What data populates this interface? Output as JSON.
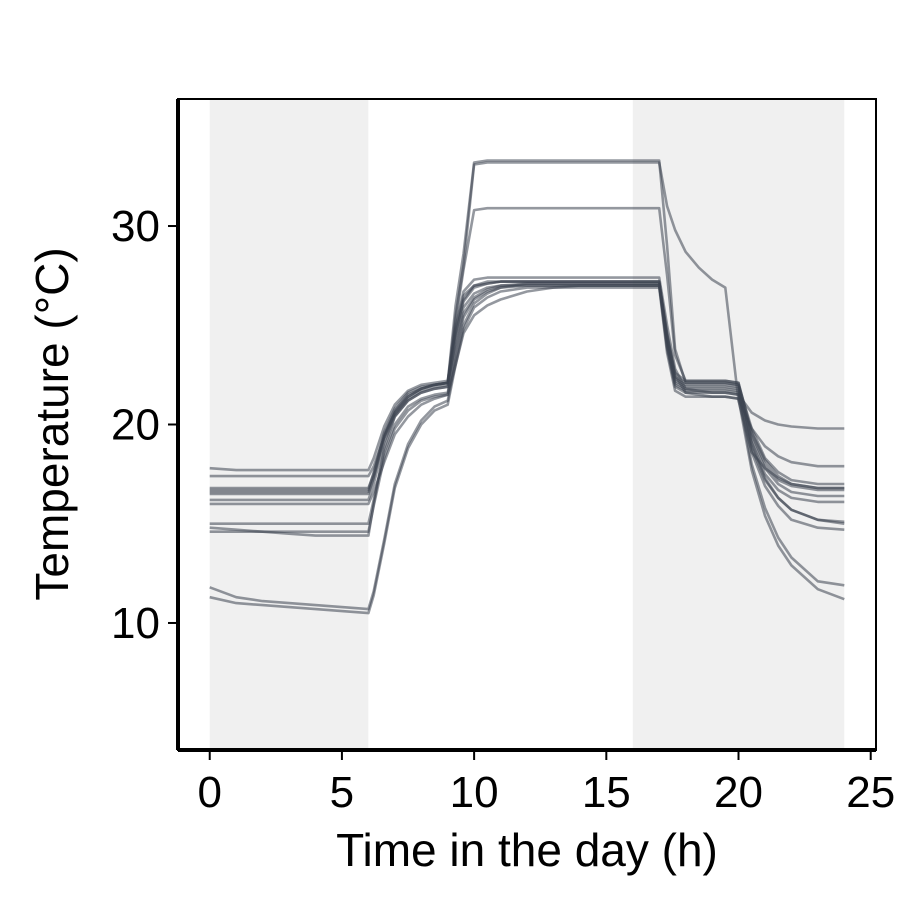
{
  "chart_data": {
    "type": "line",
    "xlabel": "Time in the day (h)",
    "ylabel": "Temperature (°C)",
    "xlim": [
      -1.2,
      25.2
    ],
    "ylim": [
      3.6,
      36.4
    ],
    "x_ticks": [
      0,
      5,
      10,
      15,
      20,
      25
    ],
    "x_tick_labels": [
      "0",
      "5",
      "10",
      "15",
      "20",
      "25"
    ],
    "y_ticks": [
      10,
      20,
      30
    ],
    "y_tick_labels": [
      "10",
      "20",
      "30"
    ],
    "shaded_periods": [
      [
        0,
        6
      ],
      [
        16,
        24
      ]
    ],
    "line_color": "#3c4350",
    "shade_color": "#f0f0f0",
    "grid": false,
    "legend": "none",
    "series_x": [
      0,
      1,
      2,
      3,
      4,
      5,
      6,
      6.2,
      6.6,
      7,
      7.5,
      8,
      8.5,
      9,
      9.3,
      9.6,
      10,
      10.5,
      11,
      12,
      13,
      14,
      15,
      16,
      16.5,
      17,
      17.3,
      17.6,
      18,
      18.5,
      19,
      19.5,
      20,
      20.5,
      21,
      21.5,
      22,
      23,
      24
    ],
    "series": [
      {
        "values": [
          16.7,
          16.7,
          16.7,
          16.7,
          16.7,
          16.7,
          16.7,
          17.6,
          19.6,
          20.8,
          21.6,
          21.9,
          22.0,
          22.1,
          26.0,
          28.6,
          33.2,
          33.3,
          33.3,
          33.3,
          33.3,
          33.3,
          33.3,
          33.3,
          33.3,
          33.3,
          29.0,
          23.8,
          22.1,
          22.1,
          22.1,
          22.1,
          22.0,
          19.8,
          18.3,
          17.6,
          17.2,
          17.0,
          17.0
        ]
      },
      {
        "values": [
          16.6,
          16.6,
          16.6,
          16.6,
          16.6,
          16.6,
          16.6,
          17.4,
          19.4,
          20.6,
          21.4,
          21.8,
          22.0,
          22.1,
          25.5,
          28.0,
          33.1,
          33.2,
          33.2,
          33.2,
          33.2,
          33.2,
          33.2,
          33.2,
          33.2,
          33.2,
          31.0,
          29.8,
          28.7,
          27.9,
          27.3,
          26.9,
          21.2,
          18.6,
          17.8,
          17.3,
          17.0,
          16.8,
          16.8
        ]
      },
      {
        "values": [
          16.5,
          16.5,
          16.5,
          16.5,
          16.5,
          16.5,
          16.5,
          17.3,
          19.3,
          20.5,
          21.3,
          21.7,
          21.9,
          22.0,
          25.2,
          27.8,
          30.8,
          30.9,
          30.9,
          30.9,
          30.9,
          30.9,
          30.9,
          30.9,
          30.9,
          30.9,
          27.5,
          23.5,
          22.2,
          22.2,
          22.2,
          22.2,
          22.1,
          19.5,
          18.0,
          17.2,
          16.9,
          16.7,
          16.7
        ]
      },
      {
        "values": [
          16.8,
          16.8,
          16.8,
          16.8,
          16.8,
          16.8,
          16.8,
          17.5,
          19.5,
          20.7,
          21.5,
          21.8,
          22.0,
          22.1,
          24.8,
          26.5,
          27.0,
          27.1,
          27.2,
          27.2,
          27.2,
          27.2,
          27.2,
          27.2,
          27.2,
          27.2,
          24.5,
          22.6,
          22.2,
          22.2,
          22.2,
          22.2,
          22.1,
          19.6,
          18.2,
          17.4,
          17.0,
          16.8,
          16.8
        ]
      },
      {
        "values": [
          17.8,
          17.7,
          17.7,
          17.7,
          17.7,
          17.7,
          17.7,
          18.3,
          19.9,
          21.0,
          21.7,
          22.0,
          22.1,
          22.2,
          24.9,
          26.7,
          27.3,
          27.4,
          27.4,
          27.4,
          27.4,
          27.4,
          27.4,
          27.4,
          27.4,
          27.4,
          25.0,
          22.8,
          21.8,
          21.7,
          21.6,
          21.6,
          21.5,
          20.6,
          20.2,
          20.0,
          19.9,
          19.8,
          19.8
        ]
      },
      {
        "values": [
          17.4,
          17.4,
          17.4,
          17.4,
          17.4,
          17.4,
          17.4,
          17.9,
          19.4,
          20.6,
          21.4,
          21.8,
          22.0,
          22.1,
          24.6,
          26.3,
          27.0,
          27.2,
          27.2,
          27.2,
          27.2,
          27.2,
          27.2,
          27.2,
          27.2,
          27.2,
          24.6,
          22.5,
          21.6,
          21.5,
          21.4,
          21.4,
          21.3,
          19.8,
          18.9,
          18.4,
          18.1,
          17.9,
          17.9
        ]
      },
      {
        "values": [
          16.2,
          16.2,
          16.2,
          16.2,
          16.2,
          16.2,
          16.2,
          17.0,
          19.1,
          20.4,
          21.2,
          21.6,
          21.8,
          21.9,
          24.2,
          25.9,
          26.6,
          26.9,
          27.0,
          27.0,
          27.0,
          27.0,
          27.0,
          27.0,
          27.0,
          27.0,
          24.3,
          22.3,
          22.0,
          22.0,
          22.0,
          22.0,
          21.9,
          19.3,
          17.8,
          17.0,
          16.6,
          16.4,
          16.4
        ]
      },
      {
        "values": [
          16.0,
          16.0,
          16.0,
          16.0,
          16.0,
          16.0,
          16.0,
          16.6,
          18.1,
          19.5,
          20.4,
          21.0,
          21.3,
          21.5,
          23.0,
          24.6,
          25.5,
          26.0,
          26.3,
          26.7,
          26.9,
          27.0,
          27.0,
          27.0,
          27.0,
          27.0,
          24.2,
          22.2,
          21.9,
          21.9,
          21.9,
          21.9,
          21.8,
          19.1,
          17.5,
          16.7,
          16.3,
          16.1,
          16.1
        ]
      },
      {
        "values": [
          15.0,
          15.0,
          15.0,
          15.0,
          15.0,
          15.0,
          15.0,
          16.2,
          18.6,
          20.0,
          20.9,
          21.3,
          21.5,
          21.6,
          23.8,
          25.6,
          26.4,
          26.8,
          27.0,
          27.1,
          27.1,
          27.1,
          27.1,
          27.1,
          27.1,
          27.1,
          24.0,
          22.1,
          21.8,
          21.8,
          21.8,
          21.8,
          21.7,
          18.8,
          17.2,
          16.3,
          15.7,
          15.2,
          15.1
        ]
      },
      {
        "values": [
          14.6,
          14.6,
          14.6,
          14.6,
          14.6,
          14.6,
          14.6,
          15.9,
          18.3,
          19.8,
          20.7,
          21.2,
          21.4,
          21.5,
          23.6,
          25.4,
          26.3,
          26.7,
          26.9,
          27.0,
          27.0,
          27.0,
          27.0,
          27.0,
          27.0,
          27.0,
          23.9,
          22.0,
          21.7,
          21.7,
          21.7,
          21.7,
          21.6,
          18.6,
          16.9,
          15.9,
          15.2,
          14.8,
          14.7
        ]
      },
      {
        "values": [
          14.8,
          14.7,
          14.6,
          14.5,
          14.4,
          14.4,
          14.4,
          16.0,
          18.8,
          20.4,
          21.2,
          21.6,
          21.8,
          21.9,
          24.4,
          26.2,
          26.9,
          27.1,
          27.2,
          27.2,
          27.2,
          27.2,
          27.2,
          27.2,
          27.2,
          27.2,
          24.4,
          22.4,
          22.1,
          22.1,
          22.1,
          22.1,
          22.0,
          19.0,
          17.3,
          16.3,
          15.7,
          15.2,
          15.0
        ]
      },
      {
        "values": [
          11.8,
          11.3,
          11.1,
          11.0,
          10.9,
          10.8,
          10.7,
          11.6,
          14.2,
          17.0,
          19.0,
          20.2,
          20.9,
          21.2,
          23.2,
          25.0,
          26.1,
          26.6,
          26.9,
          27.1,
          27.1,
          27.1,
          27.1,
          27.1,
          27.1,
          27.1,
          23.8,
          21.9,
          21.6,
          21.6,
          21.6,
          21.6,
          21.5,
          18.0,
          15.8,
          14.3,
          13.3,
          12.1,
          11.9
        ]
      },
      {
        "values": [
          11.3,
          11.0,
          10.9,
          10.8,
          10.7,
          10.6,
          10.5,
          11.4,
          14.0,
          16.8,
          18.8,
          20.0,
          20.7,
          21.0,
          23.0,
          24.8,
          25.9,
          26.4,
          26.7,
          26.9,
          26.9,
          26.9,
          26.9,
          26.9,
          26.9,
          26.9,
          23.6,
          21.7,
          21.4,
          21.4,
          21.4,
          21.4,
          21.3,
          17.7,
          15.4,
          13.9,
          12.9,
          11.7,
          11.2
        ]
      }
    ]
  }
}
